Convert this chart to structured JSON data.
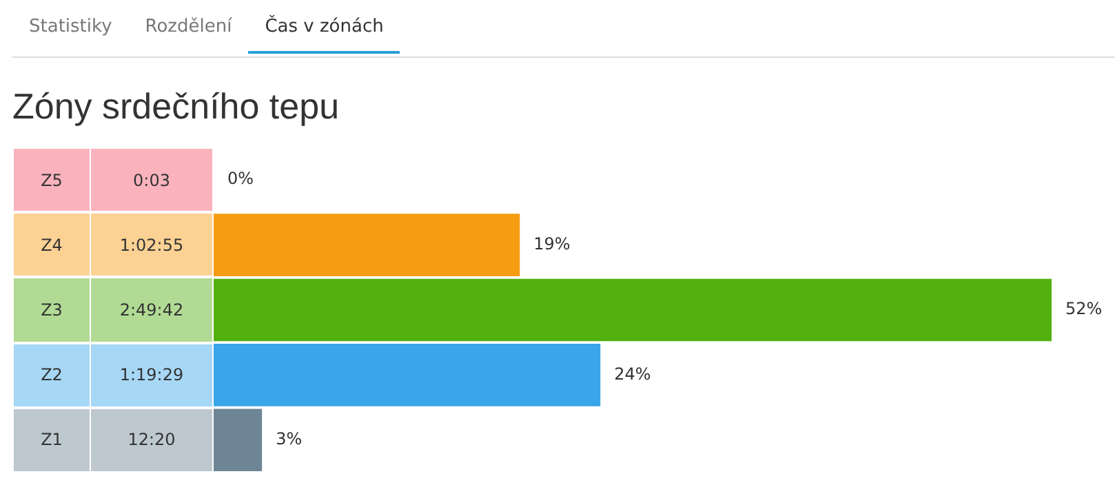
{
  "chart_data": {
    "type": "bar",
    "orientation": "horizontal",
    "title": "Zóny srdečního tepu",
    "categories": [
      "Z5",
      "Z4",
      "Z3",
      "Z2",
      "Z1"
    ],
    "values": [
      0,
      19,
      52,
      24,
      3
    ],
    "value_labels": [
      "0%",
      "19%",
      "52%",
      "24%",
      "3%"
    ],
    "colors": [
      "#f4566c",
      "#f59c12",
      "#52b011",
      "#3aa5e8",
      "#6e8595"
    ],
    "annotations": [
      "Statistiky",
      "Rozdělení",
      "Čas v zónách",
      "0:03",
      "1:02:55",
      "2:49:42",
      "1:19:29",
      "12:20"
    ]
  }
}
